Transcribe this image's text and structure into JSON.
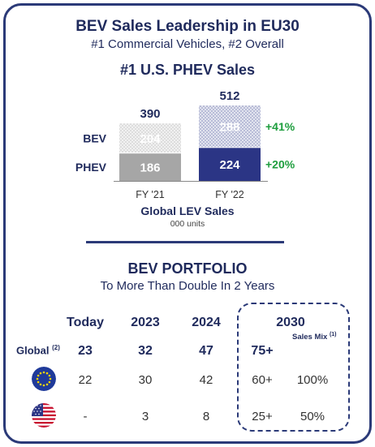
{
  "header": {
    "title": "BEV Sales Leadership in EU30",
    "subtitle": "#1 Commercial Vehicles, #2 Overall",
    "phev_title": "#1 U.S. PHEV Sales"
  },
  "chart_data": {
    "type": "bar",
    "stacked": true,
    "title": "Global LEV Sales",
    "subtitle": "000 units",
    "categories": [
      "FY '21",
      "FY '22"
    ],
    "series": [
      {
        "name": "PHEV",
        "values": [
          186,
          224
        ],
        "colors": [
          "#a6a6a6",
          "#2b3585"
        ]
      },
      {
        "name": "BEV",
        "values": [
          204,
          288
        ],
        "colors": [
          "#e2e2e2",
          "#c4c8dc"
        ]
      }
    ],
    "totals": [
      "390",
      "512"
    ],
    "growth": {
      "BEV": "+41%",
      "PHEV": "+20%"
    },
    "growth_color": "#1e9e3e",
    "ylim": [
      0,
      512
    ]
  },
  "portfolio": {
    "title": "BEV PORTFOLIO",
    "subtitle": "To More Than Double In 2 Years",
    "columns": [
      "Today",
      "2023",
      "2024",
      "2030"
    ],
    "sales_mix_label": "Sales Mix",
    "sales_mix_sup": "(1)",
    "global_label": "Global",
    "global_sup": "(2)",
    "rows": [
      {
        "region": "Global",
        "icon": "",
        "today": "23",
        "y2023": "32",
        "y2024": "47",
        "y2030": "75+",
        "mix": ""
      },
      {
        "region": "EU",
        "icon": "eu-flag-icon",
        "today": "22",
        "y2023": "30",
        "y2024": "42",
        "y2030": "60+",
        "mix": "100%"
      },
      {
        "region": "US",
        "icon": "us-flag-icon",
        "today": "-",
        "y2023": "3",
        "y2024": "8",
        "y2030": "25+",
        "mix": "50%"
      }
    ]
  }
}
